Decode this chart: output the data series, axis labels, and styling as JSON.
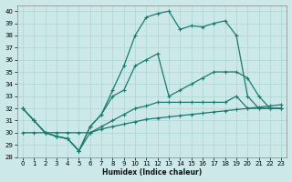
{
  "xlabel": "Humidex (Indice chaleur)",
  "bg_color": "#cde8e8",
  "grid_color": "#b0d8d8",
  "line_color": "#1a7a6e",
  "series": [
    {
      "x": [
        0,
        1,
        2,
        3,
        4,
        5,
        6,
        7,
        8,
        9,
        10,
        11,
        12,
        13,
        14,
        15,
        16,
        17,
        18,
        19,
        20,
        21,
        22,
        23
      ],
      "y": [
        30,
        30,
        30,
        30,
        30,
        30,
        30,
        30.3,
        30.5,
        30.7,
        30.9,
        31.1,
        31.2,
        31.3,
        31.4,
        31.5,
        31.6,
        31.7,
        31.8,
        31.9,
        32.0,
        32.1,
        32.2,
        32.3
      ]
    },
    {
      "x": [
        0,
        1,
        2,
        3,
        4,
        5,
        6,
        7,
        8,
        9,
        10,
        11,
        12,
        13,
        14,
        15,
        16,
        17,
        18,
        19,
        20,
        21,
        22,
        23
      ],
      "y": [
        32,
        31,
        30,
        29.7,
        29.5,
        28.5,
        30,
        30.5,
        31,
        31.5,
        32,
        32.2,
        32.5,
        32.5,
        32.5,
        32.5,
        32.5,
        32.5,
        32.5,
        33,
        32,
        32,
        32,
        32
      ]
    },
    {
      "x": [
        0,
        1,
        2,
        3,
        4,
        5,
        6,
        7,
        8,
        9,
        10,
        11,
        12,
        13,
        14,
        15,
        16,
        17,
        18,
        19,
        20,
        21,
        22,
        23
      ],
      "y": [
        32,
        31,
        30,
        29.7,
        29.5,
        28.5,
        30.5,
        31.5,
        33,
        33.5,
        35.5,
        36,
        36.5,
        33,
        33.5,
        34,
        34.5,
        35,
        35,
        35,
        34.5,
        33,
        32,
        32
      ]
    },
    {
      "x": [
        0,
        1,
        2,
        3,
        4,
        5,
        6,
        7,
        8,
        9,
        10,
        11,
        12,
        13,
        14,
        15,
        16,
        17,
        18,
        19,
        20,
        21,
        22,
        23
      ],
      "y": [
        32,
        31,
        30,
        29.7,
        29.5,
        28.5,
        30.5,
        31.5,
        33.5,
        35.5,
        38,
        39.5,
        39.8,
        40,
        38.5,
        38.8,
        38.7,
        39,
        39.2,
        38,
        33,
        32,
        32,
        32
      ]
    }
  ],
  "ylim": [
    28,
    40.5
  ],
  "xlim": [
    -0.5,
    23.5
  ],
  "yticks": [
    28,
    29,
    30,
    31,
    32,
    33,
    34,
    35,
    36,
    37,
    38,
    39,
    40
  ],
  "xticks": [
    0,
    1,
    2,
    3,
    4,
    5,
    6,
    7,
    8,
    9,
    10,
    11,
    12,
    13,
    14,
    15,
    16,
    17,
    18,
    19,
    20,
    21,
    22,
    23
  ],
  "marker": "+"
}
